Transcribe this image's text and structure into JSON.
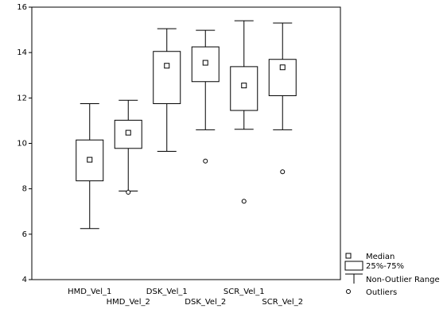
{
  "chart_data": {
    "type": "box",
    "title": "",
    "xlabel": "",
    "ylabel": "",
    "ylim": [
      4,
      16
    ],
    "yticks": [
      4,
      6,
      8,
      10,
      12,
      14,
      16
    ],
    "grid": false,
    "legend_position": "bottom-right",
    "categories": [
      "HMD_Vel_1",
      "HMD_Vel_2",
      "DSK_Vel_1",
      "DSK_Vel_2",
      "SCR_Vel_1",
      "SCR_Vel_2"
    ],
    "boxes": [
      {
        "category": "HMD_Vel_1",
        "whisker_low": 6.25,
        "q1": 8.35,
        "median": 9.28,
        "q3": 10.15,
        "whisker_high": 11.75,
        "outliers": []
      },
      {
        "category": "HMD_Vel_2",
        "whisker_low": 7.9,
        "q1": 9.78,
        "median": 10.47,
        "q3": 11.02,
        "whisker_high": 11.9,
        "outliers": [
          7.85
        ]
      },
      {
        "category": "DSK_Vel_1",
        "whisker_low": 9.65,
        "q1": 11.75,
        "median": 13.42,
        "q3": 14.05,
        "whisker_high": 15.05,
        "outliers": []
      },
      {
        "category": "DSK_Vel_2",
        "whisker_low": 10.6,
        "q1": 12.72,
        "median": 13.55,
        "q3": 14.25,
        "whisker_high": 14.98,
        "outliers": [
          9.22
        ]
      },
      {
        "category": "SCR_Vel_1",
        "whisker_low": 10.62,
        "q1": 11.45,
        "median": 12.55,
        "q3": 13.38,
        "whisker_high": 15.4,
        "outliers": [
          7.45
        ]
      },
      {
        "category": "SCR_Vel_2",
        "whisker_low": 10.6,
        "q1": 12.1,
        "median": 13.35,
        "q3": 13.7,
        "whisker_high": 15.3,
        "outliers": [
          8.75
        ]
      }
    ],
    "legend": {
      "median": "Median",
      "box": "25%-75%",
      "range": "Non-Outlier Range",
      "outliers": "Outliers"
    }
  }
}
